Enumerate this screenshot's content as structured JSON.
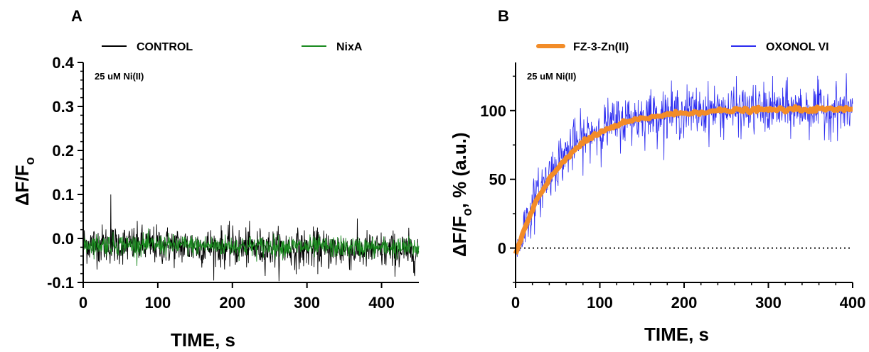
{
  "chart_data": [
    {
      "panel": "A",
      "type": "line",
      "ylabel": "ΔF/F",
      "ylabel_sub": "o",
      "xlabel": "TIME, s",
      "xlim": [
        0,
        450
      ],
      "ylim": [
        -0.1,
        0.4
      ],
      "x_ticks": [
        "0",
        "100",
        "200",
        "300",
        "400"
      ],
      "y_ticks": [
        "-0.1",
        "0.0",
        "0.1",
        "0.2",
        "0.3",
        "0.4"
      ],
      "annotation": "25 uM Ni(II)",
      "legend_position": "top",
      "grid": false,
      "series": [
        {
          "name": "CONTROL",
          "color": "#000000",
          "mean": -0.012,
          "noise_sd": 0.022,
          "drift_per_s": -4e-05,
          "x_step": 0.5
        },
        {
          "name": "NixA",
          "color": "#1a8a1f",
          "mean": -0.013,
          "noise_sd": 0.012,
          "drift_per_s": -2e-05,
          "x_step": 0.5
        }
      ]
    },
    {
      "panel": "B",
      "type": "line",
      "ylabel": "ΔF/F",
      "ylabel_sub": "o",
      "ylabel_rest": ", % (a.u.)",
      "xlabel": "TIME, s",
      "xlim": [
        0,
        400
      ],
      "ylim": [
        -25,
        135
      ],
      "x_ticks": [
        "0",
        "100",
        "200",
        "300",
        "400"
      ],
      "y_ticks": [
        "0",
        "50",
        "100"
      ],
      "annotation": "25 uM Ni(II)",
      "legend_position": "top",
      "grid": false,
      "reference_line": {
        "y": 0,
        "style": "dotted"
      },
      "series": [
        {
          "name": "FZ-3-Zn(II)",
          "color": "#f28c28",
          "model": "y = -5 + 106*(1 - exp(-x/55))",
          "x_step": 2
        },
        {
          "name": "OXONOL VI",
          "color": "#2b2bf0",
          "model": "y = -5 + 106*(1 - exp(-x/50))",
          "noise_sd": 9,
          "x_step": 0.5
        }
      ]
    }
  ],
  "colors": {
    "control": "#000000",
    "nixa": "#1a8a1f",
    "fz3": "#f28c28",
    "oxonol": "#2b2bf0"
  }
}
